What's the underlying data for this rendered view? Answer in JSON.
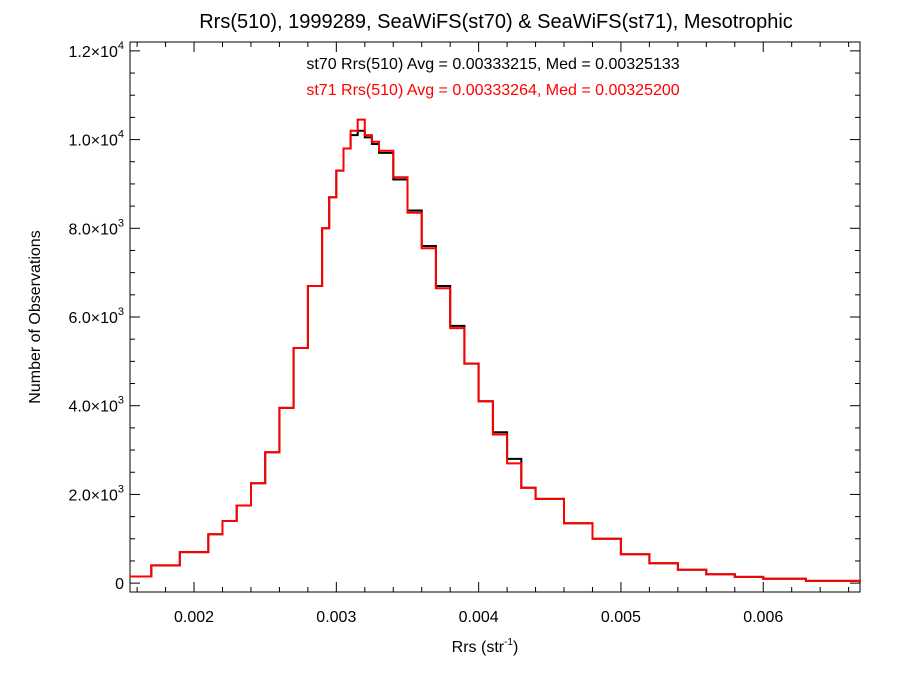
{
  "chart_data": {
    "type": "histogram",
    "title": "Rrs(510), 1999289, SeaWiFS(st70) & SeaWiFS(st71), Mesotrophic",
    "xlabel": "Rrs (str",
    "xlabel_sup": "-1",
    "xlabel_suffix": ")",
    "ylabel": "Number of Observations",
    "xlim": [
      0.00155,
      0.00668
    ],
    "ylim": [
      -200,
      12200
    ],
    "x_ticks": [
      0.002,
      0.003,
      0.004,
      0.005,
      0.006
    ],
    "x_tick_labels": [
      "0.002",
      "0.003",
      "0.004",
      "0.005",
      "0.006"
    ],
    "y_ticks": [
      0,
      2000,
      4000,
      6000,
      8000,
      10000,
      12000
    ],
    "y_tick_labels": [
      {
        "mantissa": "0",
        "exp": ""
      },
      {
        "mantissa": "2.0×10",
        "exp": "3"
      },
      {
        "mantissa": "4.0×10",
        "exp": "3"
      },
      {
        "mantissa": "6.0×10",
        "exp": "3"
      },
      {
        "mantissa": "8.0×10",
        "exp": "3"
      },
      {
        "mantissa": "1.0×10",
        "exp": "4"
      },
      {
        "mantissa": "1.2×10",
        "exp": "4"
      }
    ],
    "grid": false,
    "legend_position": "top-center",
    "series": [
      {
        "name": "st70",
        "color": "#000000",
        "annotation": "st70 Rrs(510) Avg = 0.00333215, Med = 0.00325133",
        "x": [
          0.00155,
          0.0017,
          0.0019,
          0.0021,
          0.0022,
          0.0023,
          0.0024,
          0.0025,
          0.0026,
          0.0027,
          0.0028,
          0.0029,
          0.00295,
          0.003,
          0.00305,
          0.0031,
          0.00315,
          0.0032,
          0.00325,
          0.0033,
          0.0034,
          0.0035,
          0.0036,
          0.0037,
          0.0038,
          0.0039,
          0.004,
          0.0041,
          0.0042,
          0.0043,
          0.0044,
          0.0046,
          0.0048,
          0.005,
          0.0052,
          0.0054,
          0.0056,
          0.0058,
          0.006,
          0.0063,
          0.00668
        ],
        "y": [
          150,
          400,
          700,
          1100,
          1400,
          1750,
          2250,
          2950,
          3950,
          5300,
          6700,
          8000,
          8700,
          9300,
          9800,
          10100,
          10200,
          10050,
          9900,
          9700,
          9100,
          8400,
          7600,
          6700,
          5800,
          4950,
          4100,
          3400,
          2800,
          2150,
          1900,
          1350,
          1000,
          650,
          450,
          300,
          200,
          140,
          100,
          50,
          20
        ]
      },
      {
        "name": "st71",
        "color": "#ff0000",
        "annotation": "st71 Rrs(510) Avg = 0.00333264, Med = 0.00325200",
        "x": [
          0.00155,
          0.0017,
          0.0019,
          0.0021,
          0.0022,
          0.0023,
          0.0024,
          0.0025,
          0.0026,
          0.0027,
          0.0028,
          0.0029,
          0.00295,
          0.003,
          0.00305,
          0.0031,
          0.00315,
          0.0032,
          0.00325,
          0.0033,
          0.0034,
          0.0035,
          0.0036,
          0.0037,
          0.0038,
          0.0039,
          0.004,
          0.0041,
          0.0042,
          0.0043,
          0.0044,
          0.0046,
          0.0048,
          0.005,
          0.0052,
          0.0054,
          0.0056,
          0.0058,
          0.006,
          0.0063,
          0.00668
        ],
        "y": [
          150,
          400,
          700,
          1100,
          1400,
          1750,
          2250,
          2950,
          3950,
          5300,
          6700,
          8000,
          8700,
          9300,
          9800,
          10200,
          10450,
          10100,
          9950,
          9750,
          9150,
          8350,
          7550,
          6650,
          5750,
          4950,
          4100,
          3350,
          2700,
          2150,
          1900,
          1350,
          1000,
          650,
          450,
          300,
          200,
          140,
          100,
          50,
          20
        ]
      }
    ]
  }
}
